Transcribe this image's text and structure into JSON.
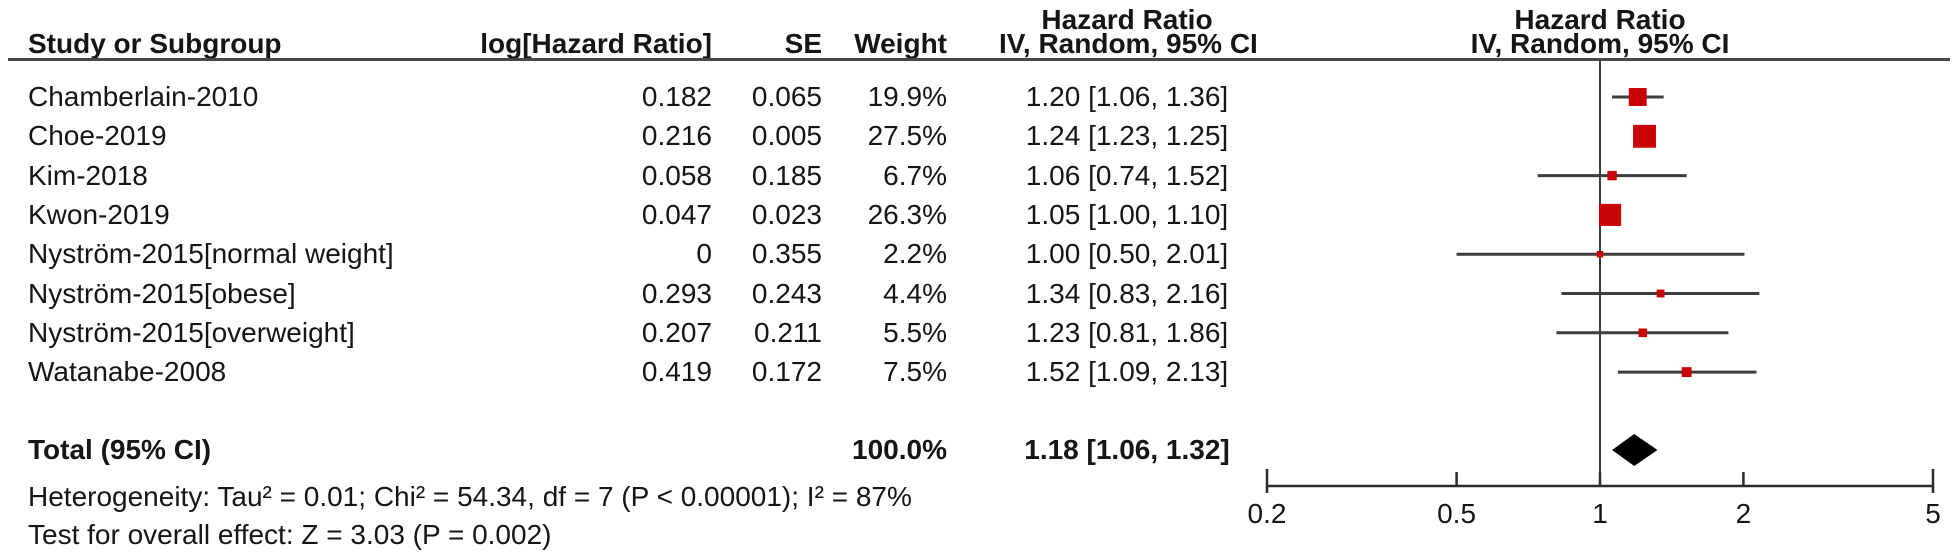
{
  "columns": {
    "study": "Study or Subgroup",
    "log_hr": "log[Hazard Ratio]",
    "se": "SE",
    "weight": "Weight",
    "effect_header_line1": "Hazard Ratio",
    "effect_header_line2": "IV, Random, 95% CI",
    "plot_header_line1": "Hazard Ratio",
    "plot_header_line2": "IV, Random, 95% CI"
  },
  "chart_data": {
    "type": "forest",
    "x_scale": "log",
    "xlim": [
      0.2,
      5
    ],
    "axis_ticks": [
      "0.2",
      "0.5",
      "1",
      "2",
      "5"
    ],
    "studies": [
      {
        "name": "Chamberlain-2010",
        "log_hr": "0.182",
        "se": "0.065",
        "weight": "19.9%",
        "weight_pct": 19.9,
        "hr": 1.2,
        "ci_low": 1.06,
        "ci_high": 1.36,
        "ci_text": "1.20 [1.06, 1.36]"
      },
      {
        "name": "Choe-2019",
        "log_hr": "0.216",
        "se": "0.005",
        "weight": "27.5%",
        "weight_pct": 27.5,
        "hr": 1.24,
        "ci_low": 1.23,
        "ci_high": 1.25,
        "ci_text": "1.24 [1.23, 1.25]"
      },
      {
        "name": "Kim-2018",
        "log_hr": "0.058",
        "se": "0.185",
        "weight": "6.7%",
        "weight_pct": 6.7,
        "hr": 1.06,
        "ci_low": 0.74,
        "ci_high": 1.52,
        "ci_text": "1.06 [0.74, 1.52]"
      },
      {
        "name": "Kwon-2019",
        "log_hr": "0.047",
        "se": "0.023",
        "weight": "26.3%",
        "weight_pct": 26.3,
        "hr": 1.05,
        "ci_low": 1.0,
        "ci_high": 1.1,
        "ci_text": "1.05 [1.00, 1.10]"
      },
      {
        "name": "Nyström-2015[normal weight]",
        "log_hr": "0",
        "se": "0.355",
        "weight": "2.2%",
        "weight_pct": 2.2,
        "hr": 1.0,
        "ci_low": 0.5,
        "ci_high": 2.01,
        "ci_text": "1.00 [0.50, 2.01]"
      },
      {
        "name": "Nyström-2015[obese]",
        "log_hr": "0.293",
        "se": "0.243",
        "weight": "4.4%",
        "weight_pct": 4.4,
        "hr": 1.34,
        "ci_low": 0.83,
        "ci_high": 2.16,
        "ci_text": "1.34 [0.83, 2.16]"
      },
      {
        "name": "Nyström-2015[overweight]",
        "log_hr": "0.207",
        "se": "0.211",
        "weight": "5.5%",
        "weight_pct": 5.5,
        "hr": 1.23,
        "ci_low": 0.81,
        "ci_high": 1.86,
        "ci_text": "1.23 [0.81, 1.86]"
      },
      {
        "name": "Watanabe-2008",
        "log_hr": "0.419",
        "se": "0.172",
        "weight": "7.5%",
        "weight_pct": 7.5,
        "hr": 1.52,
        "ci_low": 1.09,
        "ci_high": 2.13,
        "ci_text": "1.52 [1.09, 2.13]"
      }
    ],
    "total": {
      "label": "Total (95% CI)",
      "weight": "100.0%",
      "hr": 1.18,
      "ci_low": 1.06,
      "ci_high": 1.32,
      "ci_text": "1.18 [1.06, 1.32]"
    }
  },
  "footnotes": {
    "heterogeneity": "Heterogeneity: Tau² = 0.01; Chi² = 54.34, df = 7 (P < 0.00001); I² = 87%",
    "overall_effect": "Test for overall effect: Z = 3.03 (P = 0.002)"
  },
  "colors": {
    "marker": "#c80404",
    "diamond": "#000000",
    "ci_line": "#3d3d3d",
    "axis": "#2b2b2b",
    "rule": "#474747"
  }
}
